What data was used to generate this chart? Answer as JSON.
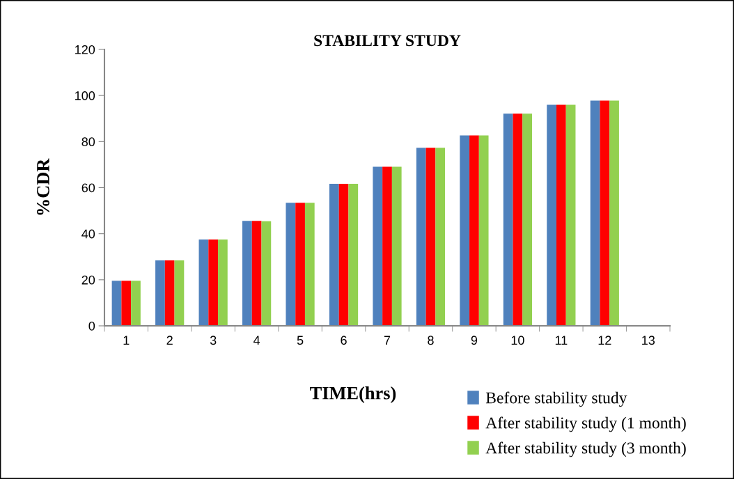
{
  "chart_data": {
    "type": "bar",
    "title": "STABILITY STUDY",
    "xlabel": "TIME(hrs)",
    "ylabel": "%CDR",
    "categories": [
      "1",
      "2",
      "3",
      "4",
      "5",
      "6",
      "7",
      "8",
      "9",
      "10",
      "11",
      "12",
      "13"
    ],
    "series": [
      {
        "name": "Before stability study",
        "color": "#4f81bd",
        "values": [
          19.6,
          28.4,
          37.5,
          45.6,
          53.4,
          61.7,
          69.1,
          77.3,
          82.7,
          92.1,
          96.0,
          97.8,
          null
        ]
      },
      {
        "name": "After stability study (1 month)",
        "color": "#ff0000",
        "values": [
          19.6,
          28.4,
          37.5,
          45.6,
          53.4,
          61.7,
          69.1,
          77.3,
          82.7,
          92.1,
          96.0,
          97.8,
          null
        ]
      },
      {
        "name": "After stability study (3 month)",
        "color": "#92d050",
        "values": [
          19.6,
          28.4,
          37.5,
          45.4,
          53.4,
          61.7,
          69.1,
          77.3,
          82.7,
          92.1,
          96.0,
          97.8,
          null
        ]
      }
    ],
    "ylim": [
      0,
      120
    ],
    "yticks": [
      0,
      20,
      40,
      60,
      80,
      100,
      120
    ],
    "grid": false,
    "legend": "bottom right"
  }
}
